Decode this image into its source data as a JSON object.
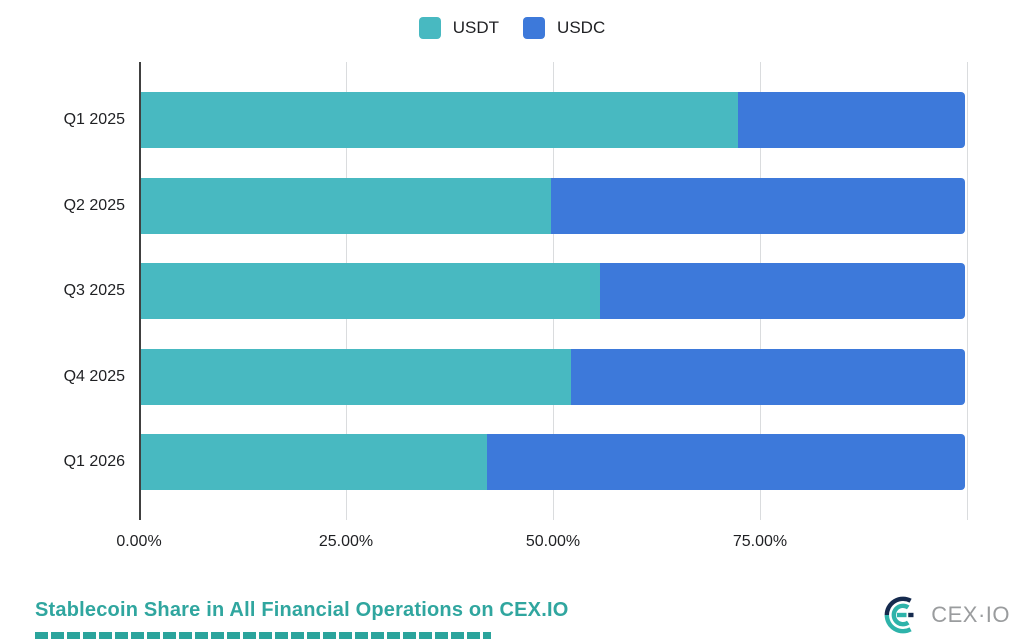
{
  "legend": {
    "items": [
      {
        "label": "USDT",
        "color": "#48b9c1"
      },
      {
        "label": "USDC",
        "color": "#3d79da"
      }
    ]
  },
  "chart_data": {
    "type": "bar",
    "orientation": "horizontal",
    "stacked": true,
    "title": "Stablecoin Share in All Financial Operations on CEX.IO",
    "categories": [
      "Q1 2025",
      "Q2 2025",
      "Q3 2025",
      "Q4 2025",
      "Q1 2026"
    ],
    "series": [
      {
        "name": "USDT",
        "color": "#48b9c1",
        "values": [
          72.4,
          49.8,
          55.7,
          52.2,
          42.0
        ]
      },
      {
        "name": "USDC",
        "color": "#3d79da",
        "values": [
          27.6,
          50.2,
          44.3,
          47.8,
          58.0
        ]
      }
    ],
    "xlim": [
      0,
      100
    ],
    "x_ticks": [
      {
        "value": 0,
        "label": "0.00%"
      },
      {
        "value": 25,
        "label": "25.00%"
      },
      {
        "value": 50,
        "label": "50.00%"
      },
      {
        "value": 75,
        "label": "75.00%"
      }
    ],
    "gridline_values": [
      25,
      50,
      75,
      100
    ],
    "grid": true,
    "legend_position": "top"
  },
  "colors": {
    "gridline": "#dadcde",
    "axis_line": "#404040",
    "axis_text": "#1f2023",
    "title_teal": "#30a69f"
  },
  "branding": {
    "logo_text": "CEX·IO",
    "logo_navy": "#152a4e",
    "logo_teal": "#2eb3aa",
    "text_color": "#9a9c9e"
  }
}
